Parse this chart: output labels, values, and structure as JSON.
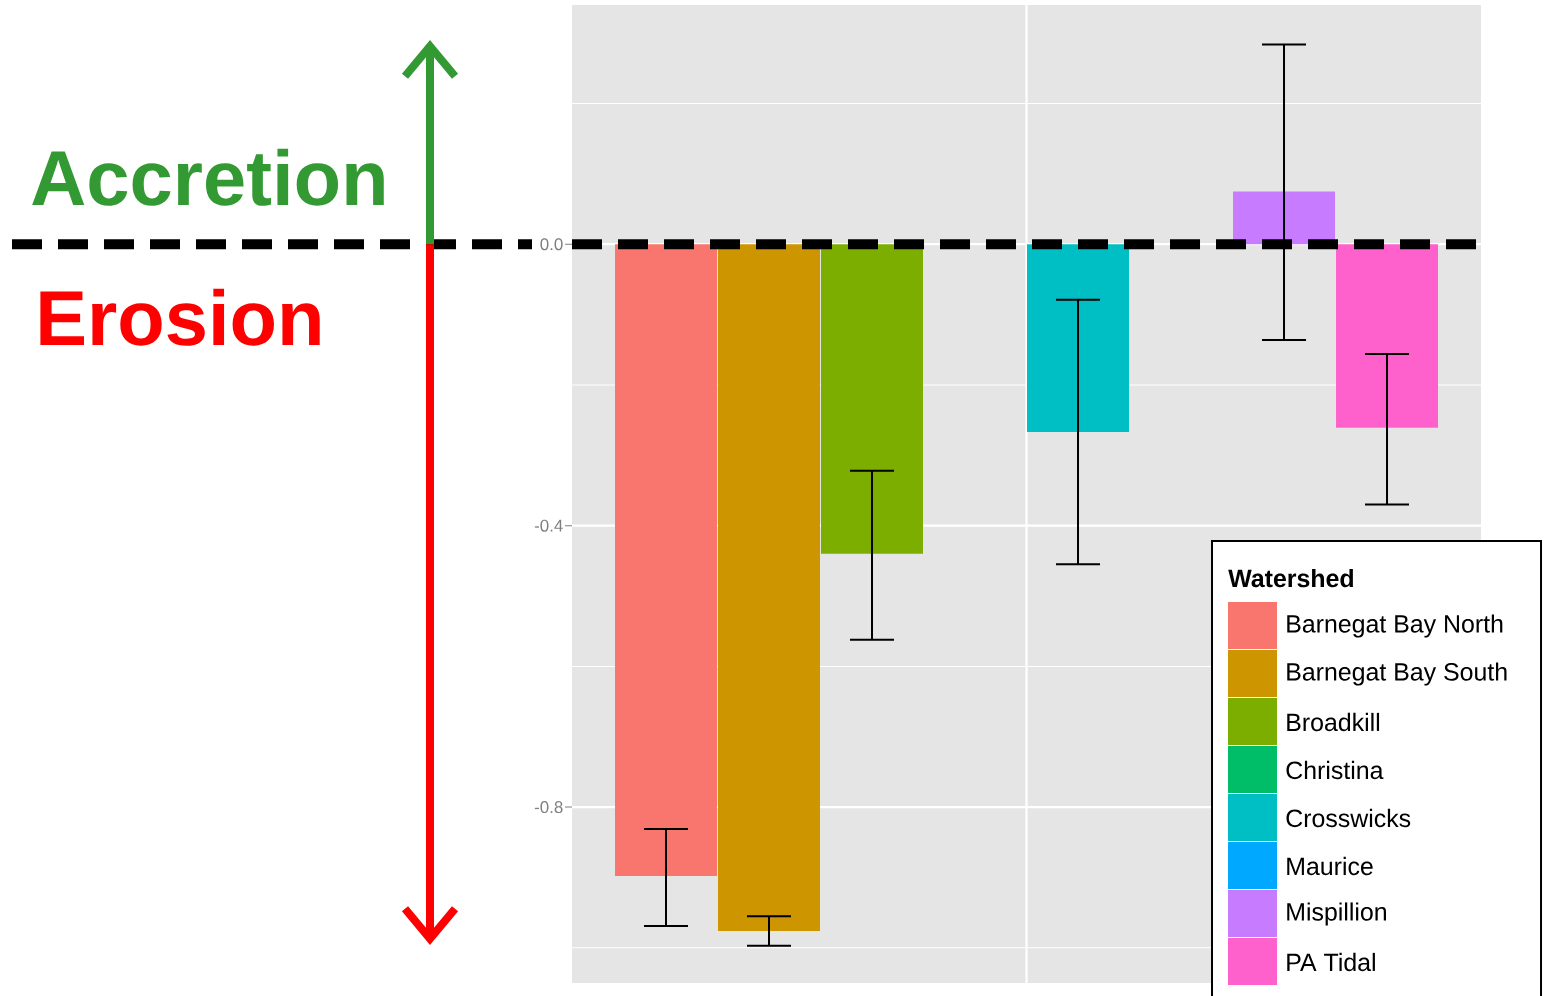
{
  "chart_data": {
    "type": "bar",
    "categories": [
      null,
      null,
      null,
      null,
      null,
      null,
      null,
      null
    ],
    "series": [
      {
        "name": "Barnegat Bay North",
        "color": "#F8766D",
        "values": [
          -0.898,
          null,
          null,
          null,
          null,
          null,
          null,
          null
        ],
        "errors": [
          [
            -0.969,
            -0.831
          ],
          null,
          null,
          null,
          null,
          null,
          null,
          null
        ]
      },
      {
        "name": "Barnegat Bay South",
        "color": "#CD9600",
        "values": [
          null,
          -0.976,
          null,
          null,
          null,
          null,
          null,
          null
        ],
        "errors": [
          null,
          [
            -0.997,
            -0.955
          ],
          null,
          null,
          null,
          null,
          null,
          null
        ]
      },
      {
        "name": "Broadkill",
        "color": "#7CAE00",
        "values": [
          null,
          null,
          -0.44,
          null,
          null,
          null,
          null,
          null
        ],
        "errors": [
          null,
          null,
          [
            -0.562,
            -0.322
          ],
          null,
          null,
          null,
          null,
          null
        ]
      },
      {
        "name": "Christina",
        "color": "#00BE67",
        "values": [
          null,
          null,
          null,
          null,
          null,
          null,
          null,
          null
        ]
      },
      {
        "name": "Crosswicks",
        "color": "#00BFC4",
        "values": [
          null,
          null,
          null,
          null,
          -0.267,
          null,
          null,
          null
        ],
        "errors": [
          null,
          null,
          null,
          null,
          [
            -0.455,
            -0.079
          ],
          null,
          null,
          null
        ]
      },
      {
        "name": "Maurice",
        "color": "#00A9FF",
        "values": [
          null,
          null,
          null,
          null,
          null,
          null,
          null,
          null
        ]
      },
      {
        "name": "Mispillion",
        "color": "#C77CFF",
        "values": [
          null,
          null,
          null,
          null,
          null,
          null,
          0.075,
          null
        ],
        "errors": [
          null,
          null,
          null,
          null,
          null,
          null,
          [
            -0.136,
            0.284
          ],
          null
        ]
      },
      {
        "name": "PA Tidal",
        "color": "#FF61CC",
        "values": [
          null,
          null,
          null,
          null,
          null,
          null,
          null,
          -0.261
        ],
        "errors": [
          null,
          null,
          null,
          null,
          null,
          null,
          null,
          [
            -0.37,
            -0.156
          ]
        ]
      }
    ],
    "ylim": [
      -1.05,
      0.34
    ],
    "yticks": [
      {
        "value": 0.2,
        "label": null
      },
      {
        "value": 0,
        "label": "0.0"
      },
      {
        "value": -0.2,
        "label": null
      },
      {
        "value": -0.4,
        "label": "-0.4"
      },
      {
        "value": -0.6,
        "label": null
      },
      {
        "value": -0.8,
        "label": "-0.8"
      },
      {
        "value": -1.0,
        "label": null
      }
    ],
    "grid": true,
    "legend": "bottom right",
    "legend_title": "Watershed",
    "ref_lines": [
      {
        "axis": "y",
        "value": 0,
        "color": "#000000",
        "line_style": "dashed"
      }
    ],
    "annotations": [
      "Accretion",
      "Erosion"
    ]
  }
}
